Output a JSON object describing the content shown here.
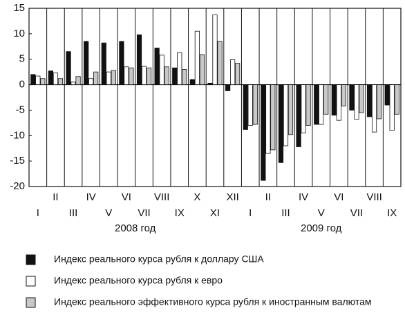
{
  "chart_data": {
    "type": "bar",
    "categories": [
      "I",
      "II",
      "III",
      "IV",
      "V",
      "VI",
      "VII",
      "VIII",
      "IX",
      "X",
      "XI",
      "XII",
      "I",
      "II",
      "III",
      "IV",
      "V",
      "VI",
      "VII",
      "VIII",
      "IX"
    ],
    "groups": [
      "2008 год",
      "2009 год"
    ],
    "series": [
      {
        "name": "Индекс реального курса рубля к доллару США",
        "color": "#111111",
        "values": [
          2.0,
          2.7,
          6.5,
          8.5,
          8.2,
          8.5,
          9.8,
          7.2,
          3.3,
          1.0,
          0.3,
          -1.2,
          -8.8,
          -18.8,
          -15.3,
          -12.2,
          -7.8,
          -6.0,
          -5.0,
          -6.3,
          -4.0
        ]
      },
      {
        "name": "Индекс реального курса рубля к евро",
        "color": "#ffffff",
        "values": [
          1.7,
          2.3,
          0.5,
          1.2,
          2.5,
          3.5,
          3.6,
          5.8,
          6.3,
          10.5,
          13.7,
          4.9,
          -8.0,
          -13.5,
          -12.0,
          -9.5,
          -7.8,
          -7.0,
          -6.8,
          -9.3,
          -9.0
        ]
      },
      {
        "name": "Индекс реального эффективного курса рубля к иностранным валютам",
        "color": "#c8c8c8",
        "values": [
          1.2,
          1.2,
          1.6,
          2.5,
          2.8,
          3.3,
          3.3,
          3.5,
          3.0,
          5.9,
          8.5,
          4.2,
          -7.8,
          -12.8,
          -9.8,
          -8.0,
          -5.8,
          -4.2,
          -5.5,
          -6.7,
          -5.8
        ]
      }
    ],
    "ylim": [
      -20,
      15
    ],
    "yticks": [
      -20,
      -15,
      -10,
      -5,
      0,
      5,
      10,
      15
    ],
    "grid": false
  }
}
